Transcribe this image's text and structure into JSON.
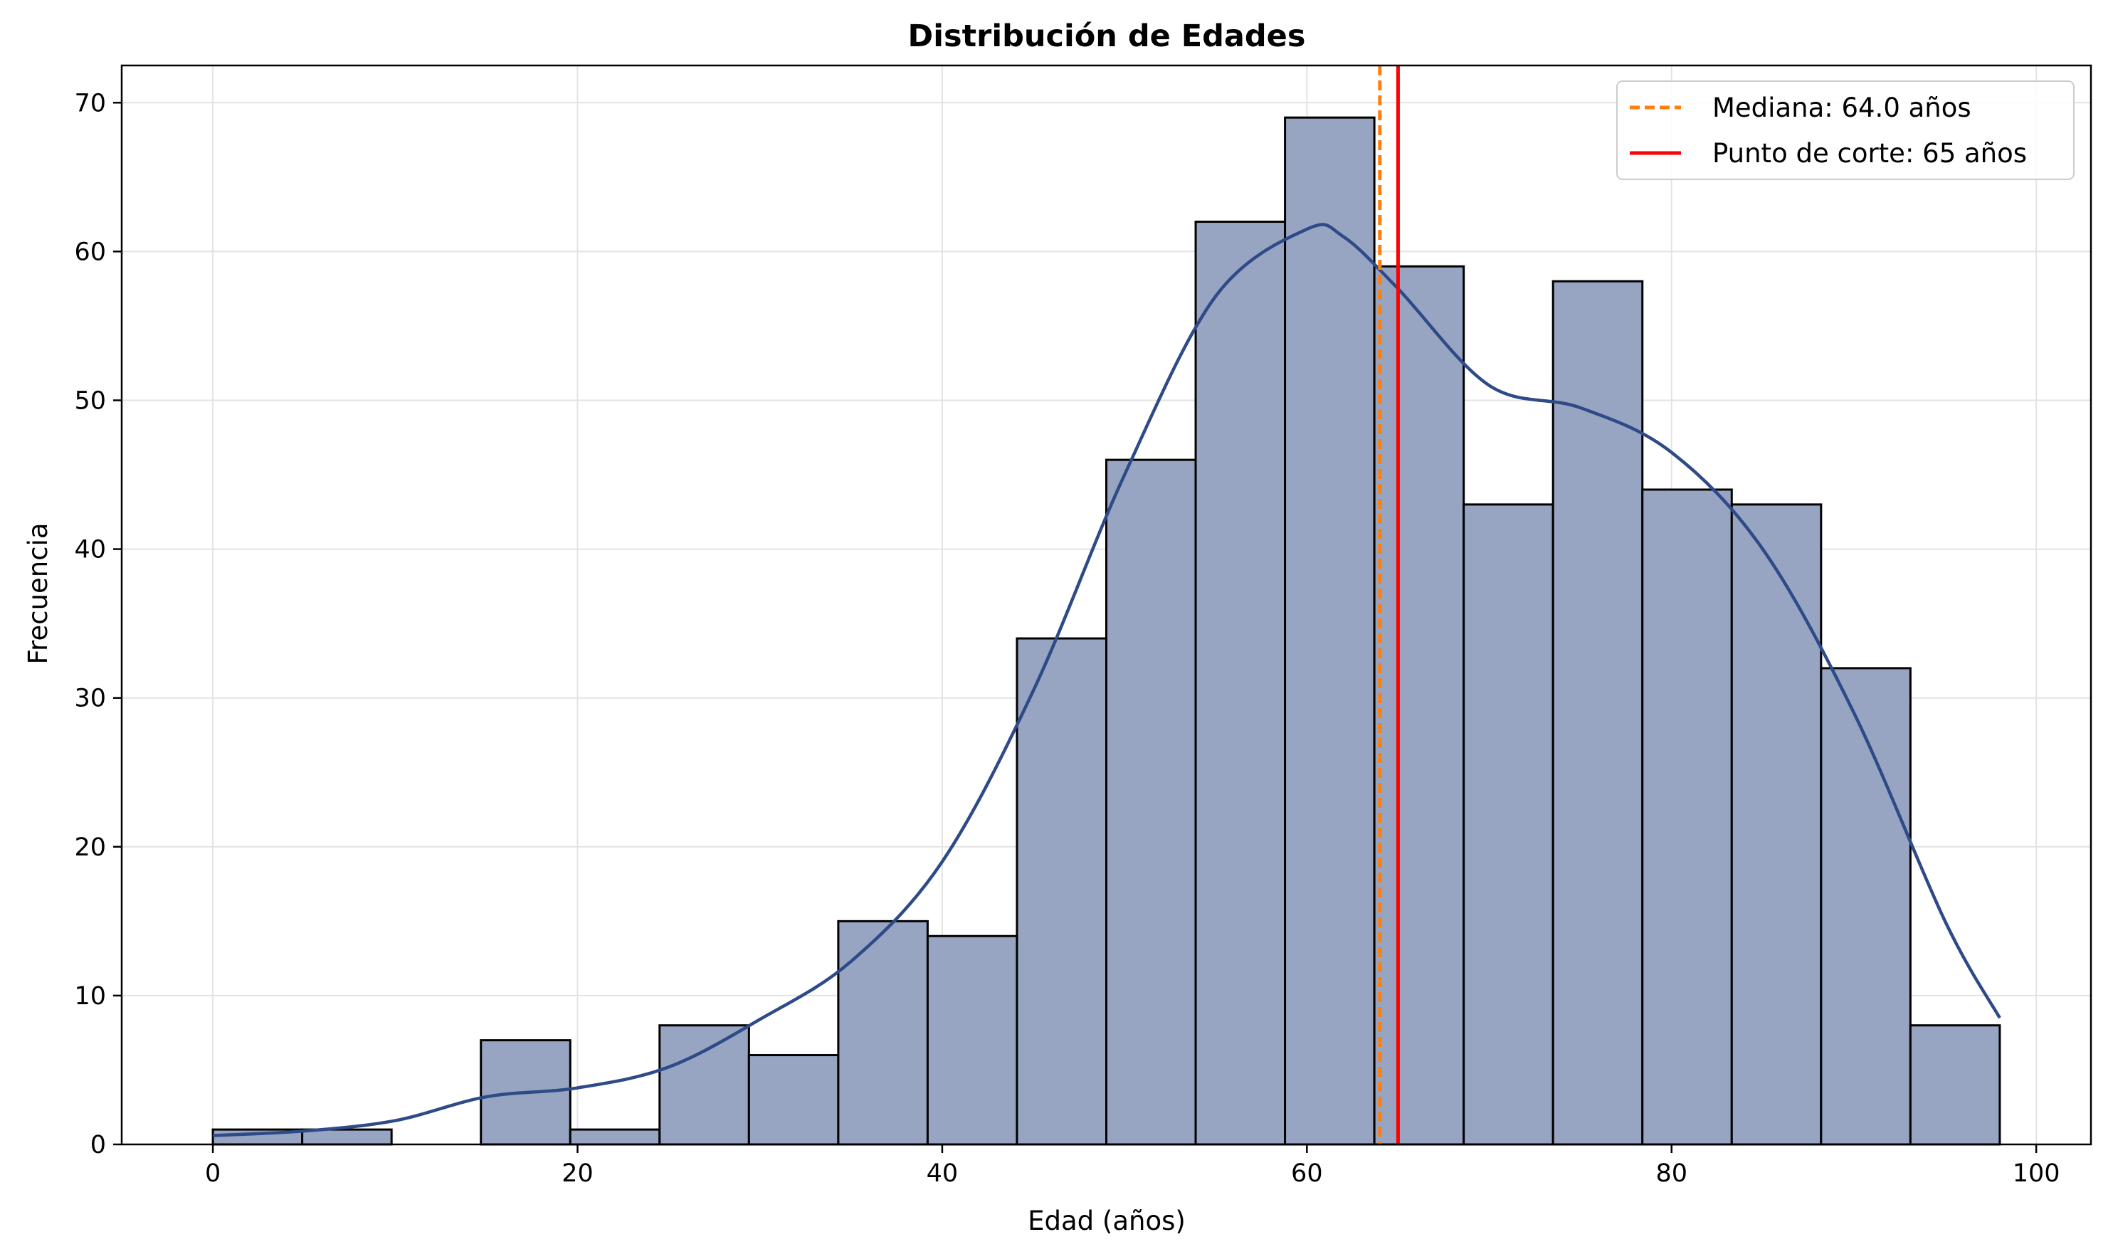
{
  "chart_data": {
    "type": "bar",
    "title": "Distribución de Edades",
    "xlabel": "Edad (años)",
    "ylabel": "Frecuencia",
    "xlim": [
      -5,
      103
    ],
    "ylim": [
      0,
      72.5
    ],
    "xticks": [
      0,
      20,
      40,
      60,
      80,
      100
    ],
    "yticks": [
      0,
      10,
      20,
      30,
      40,
      50,
      60,
      70
    ],
    "grid": true,
    "legend_position": "top-right",
    "bin_width": 4.9,
    "bins": [
      {
        "start": 0.0,
        "count": 1
      },
      {
        "start": 4.9,
        "count": 1
      },
      {
        "start": 9.8,
        "count": 0
      },
      {
        "start": 14.7,
        "count": 7
      },
      {
        "start": 19.6,
        "count": 1
      },
      {
        "start": 24.5,
        "count": 8
      },
      {
        "start": 29.4,
        "count": 6
      },
      {
        "start": 34.3,
        "count": 15
      },
      {
        "start": 39.2,
        "count": 14
      },
      {
        "start": 44.1,
        "count": 34
      },
      {
        "start": 49.0,
        "count": 46
      },
      {
        "start": 53.9,
        "count": 62
      },
      {
        "start": 58.8,
        "count": 69
      },
      {
        "start": 63.7,
        "count": 59
      },
      {
        "start": 68.6,
        "count": 43
      },
      {
        "start": 73.5,
        "count": 58
      },
      {
        "start": 78.4,
        "count": 44
      },
      {
        "start": 83.3,
        "count": 43
      },
      {
        "start": 88.2,
        "count": 32
      },
      {
        "start": 93.1,
        "count": 8
      }
    ],
    "kde": {
      "x": [
        0,
        5,
        10,
        15,
        20,
        25,
        30,
        35,
        40,
        45,
        50,
        55,
        60,
        62,
        65,
        70,
        75,
        80,
        85,
        90,
        95,
        98
      ],
      "y": [
        0.6,
        0.9,
        1.6,
        3.2,
        3.8,
        5.2,
        8.4,
        12.3,
        19.0,
        30.5,
        45.0,
        57.0,
        61.5,
        61.0,
        57.5,
        51.0,
        49.5,
        46.5,
        40.0,
        29.0,
        15.0,
        8.5
      ]
    },
    "reference_lines": [
      {
        "x": 64.0,
        "label": "Mediana: 64.0 años",
        "color": "#ff7f0e",
        "style": "dashed"
      },
      {
        "x": 65,
        "label": "Punto de corte: 65 años",
        "color": "#ff0000",
        "style": "solid"
      }
    ],
    "colors": {
      "bar_fill": "#97a5c2",
      "bar_edge": "#000000",
      "kde_line": "#2e4a87",
      "grid": "#e3e3e3"
    }
  }
}
